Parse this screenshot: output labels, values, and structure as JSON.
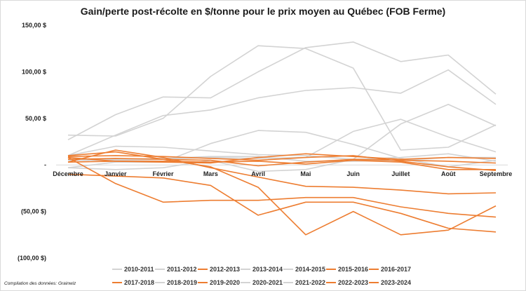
{
  "title": "Gain/perte post-récolte en $/tonne pour le prix moyen au Québec (FOB Ferme)",
  "source_note": "Compilation des données: Grainwiz",
  "colors": {
    "grey": "#d3d3d3",
    "orange": "#ed7d31",
    "axis": "#d9d9d9"
  },
  "chart_data": {
    "type": "line",
    "title": "Gain/perte post-récolte en $/tonne pour le prix moyen au Québec (FOB Ferme)",
    "xlabel": "",
    "ylabel": "",
    "categories": [
      "Décembre",
      "Janvier",
      "Février",
      "Mars",
      "Avril",
      "Mai",
      "Juin",
      "Juillet",
      "Août",
      "Septembre"
    ],
    "ylim": [
      -100,
      150
    ],
    "yticks": [
      150,
      100,
      50,
      0,
      -50,
      -100
    ],
    "ytick_labels": [
      "150,00 $",
      "100,00 $",
      "50,00 $",
      "-",
      "(50,00 $)",
      "(100,00 $)"
    ],
    "grid": false,
    "legend_position": "bottom",
    "series": [
      {
        "name": "2010-2011",
        "color": "#d3d3d3",
        "values": [
          32,
          31,
          50,
          95,
          128,
          125,
          104,
          16,
          19,
          43
        ]
      },
      {
        "name": "2011-2012",
        "color": "#d3d3d3",
        "values": [
          27,
          54,
          73,
          72,
          100,
          126,
          132,
          111,
          118,
          76
        ]
      },
      {
        "name": "2012-2013",
        "color": "#ed7d31",
        "values": [
          3,
          4,
          4,
          3,
          4,
          1,
          5,
          3,
          -5,
          -5
        ]
      },
      {
        "name": "2013-2014",
        "color": "#d3d3d3",
        "values": [
          10,
          32,
          53,
          59,
          72,
          80,
          83,
          77,
          102,
          65
        ]
      },
      {
        "name": "2014-2015",
        "color": "#d3d3d3",
        "values": [
          10,
          20,
          19,
          15,
          11,
          10,
          6,
          8,
          12,
          4
        ]
      },
      {
        "name": "2015-2016",
        "color": "#ed7d31",
        "values": [
          8,
          4,
          3,
          2,
          8,
          12,
          9,
          6,
          8,
          7
        ]
      },
      {
        "name": "2016-2017",
        "color": "#ed7d31",
        "values": [
          10,
          14,
          6,
          5,
          -1,
          3,
          6,
          5,
          4,
          2
        ]
      },
      {
        "name": "2017-2018",
        "color": "#ed7d31",
        "values": [
          -10,
          -12,
          -14,
          -22,
          -54,
          -40,
          -40,
          -52,
          -68,
          -72
        ]
      },
      {
        "name": "2018-2019",
        "color": "#d3d3d3",
        "values": [
          -3,
          3,
          3,
          23,
          37,
          35,
          22,
          7,
          -2,
          5
        ]
      },
      {
        "name": "2019-2020",
        "color": "#ed7d31",
        "values": [
          9,
          10,
          9,
          7,
          5,
          8,
          10,
          4,
          -2,
          -6
        ]
      },
      {
        "name": "2020-2021",
        "color": "#d3d3d3",
        "values": [
          5,
          6,
          7,
          9,
          9,
          4,
          4,
          5,
          8,
          8
        ]
      },
      {
        "name": "2021-2022",
        "color": "#d3d3d3",
        "values": [
          5,
          5,
          6,
          8,
          7,
          8,
          36,
          49,
          30,
          14
        ]
      },
      {
        "name": "2022-2023",
        "color": "#ed7d31",
        "values": [
          8,
          -20,
          -40,
          -38,
          -38,
          -35,
          -35,
          -45,
          -52,
          -56
        ]
      },
      {
        "name": "2023-2024",
        "color": "#ed7d31",
        "values": [
          3,
          16,
          8,
          -3,
          -13,
          -23,
          -24,
          -27,
          -31,
          -30
        ]
      },
      {
        "name": "",
        "color": "#ed7d31",
        "values": [
          6,
          7,
          6,
          -2,
          -24,
          -75,
          -50,
          -75,
          -70,
          -44
        ]
      },
      {
        "name": "",
        "color": "#d3d3d3",
        "values": [
          -3,
          -5,
          -3,
          5,
          -7,
          -5,
          6,
          44,
          65,
          42
        ]
      }
    ]
  }
}
